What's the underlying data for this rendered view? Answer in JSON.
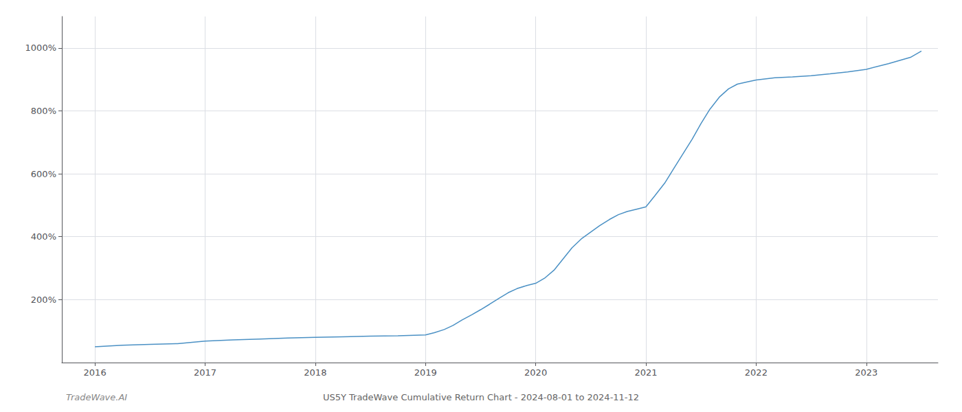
{
  "chart_data": {
    "type": "line",
    "title": "US5Y TradeWave Cumulative Return Chart - 2024-08-01 to 2024-11-12",
    "annotations": [
      "TradeWave.AI"
    ],
    "color": "#4a90c4",
    "x": [
      2016.0,
      2016.25,
      2016.5,
      2016.75,
      2017.0,
      2017.25,
      2017.5,
      2017.75,
      2018.0,
      2018.25,
      2018.5,
      2018.75,
      2019.0,
      2019.08,
      2019.17,
      2019.25,
      2019.33,
      2019.42,
      2019.5,
      2019.58,
      2019.67,
      2019.75,
      2019.83,
      2019.92,
      2020.0,
      2020.08,
      2020.17,
      2020.25,
      2020.33,
      2020.42,
      2020.5,
      2020.58,
      2020.67,
      2020.75,
      2020.83,
      2020.92,
      2021.0,
      2021.08,
      2021.17,
      2021.25,
      2021.33,
      2021.42,
      2021.5,
      2021.58,
      2021.67,
      2021.75,
      2021.83,
      2021.92,
      2022.0,
      2022.17,
      2022.33,
      2022.5,
      2022.67,
      2022.83,
      2023.0,
      2023.2,
      2023.4,
      2023.5
    ],
    "values": [
      50,
      55,
      58,
      60,
      68,
      72,
      75,
      78,
      80,
      82,
      84,
      85,
      88,
      95,
      105,
      118,
      135,
      152,
      168,
      185,
      205,
      222,
      235,
      245,
      252,
      268,
      295,
      330,
      365,
      395,
      415,
      435,
      455,
      470,
      480,
      488,
      495,
      530,
      570,
      615,
      660,
      710,
      760,
      805,
      845,
      870,
      885,
      892,
      898,
      905,
      908,
      912,
      918,
      924,
      932,
      950,
      970,
      990
    ],
    "xlim": [
      2015.7,
      2023.65
    ],
    "ylim": [
      0,
      1100
    ],
    "xticks": [
      2016,
      2017,
      2018,
      2019,
      2020,
      2021,
      2022,
      2023
    ],
    "yticks": [
      {
        "value": 200,
        "label": "200%"
      },
      {
        "value": 400,
        "label": "400%"
      },
      {
        "value": 600,
        "label": "600%"
      },
      {
        "value": 800,
        "label": "800%"
      },
      {
        "value": 1000,
        "label": "1000%"
      }
    ],
    "grid": true
  }
}
